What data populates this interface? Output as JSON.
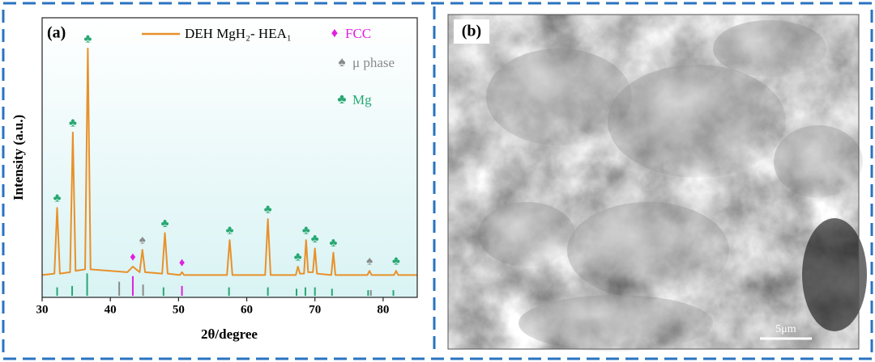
{
  "chart_data": {
    "type": "line",
    "panel_label": "(a)",
    "x_label": "2θ/degree",
    "y_label": "Intensity (a.u.)",
    "xlim": [
      30,
      85
    ],
    "xticks": [
      30,
      40,
      50,
      60,
      70,
      80
    ],
    "ylim": [
      0,
      100
    ],
    "x": [
      30,
      31.8,
      32.2,
      32.6,
      34.1,
      34.5,
      34.9,
      36.3,
      36.7,
      37.1,
      42.5,
      43.3,
      44.3,
      44.7,
      45.1,
      47.6,
      48,
      48.4,
      50.2,
      50.5,
      50.8,
      57.1,
      57.5,
      57.9,
      62.7,
      63.1,
      63.5,
      67.2,
      67.5,
      67.8,
      68.4,
      68.7,
      69.0,
      69.7,
      70.0,
      70.3,
      72.4,
      72.7,
      73.0,
      77.7,
      78.0,
      78.3,
      81.6,
      81.9,
      82.2,
      85
    ],
    "series": [
      {
        "name": "DEH MgH₂- HEA₁",
        "color": "#e8912a",
        "values": [
          8,
          8.5,
          32,
          8.5,
          9,
          59,
          9.5,
          10,
          89,
          10,
          9,
          11,
          9,
          17,
          9,
          8.5,
          23,
          8.5,
          8,
          9,
          8,
          8,
          20.5,
          8,
          8,
          28,
          8,
          8,
          11,
          8.5,
          8.5,
          20.5,
          9,
          9,
          17.5,
          8.5,
          8,
          16,
          8,
          8,
          9.5,
          8,
          8,
          9.5,
          8,
          8
        ]
      }
    ],
    "phases": [
      {
        "name": "FCC",
        "symbol": "♦",
        "color": "#e020e0",
        "peaks": [
          43.3,
          50.5
        ],
        "ref_x": [
          43.3,
          50.5
        ],
        "ref_intensity": [
          7,
          3.5
        ]
      },
      {
        "name": "μ phase",
        "symbol": "♠",
        "color": "#8a8a8a",
        "peaks": [
          44.7,
          78.0
        ],
        "ref_x": [
          41.3,
          44.8,
          78.2
        ],
        "ref_intensity": [
          5,
          4,
          2
        ]
      },
      {
        "name": "Mg",
        "symbol": "♣",
        "color": "#27a872",
        "peaks": [
          32.2,
          34.5,
          36.7,
          48,
          57.5,
          63.1,
          67.5,
          68.7,
          70.0,
          72.7,
          81.9
        ],
        "ref_x": [
          32.2,
          34.4,
          36.6,
          47.8,
          57.4,
          63.1,
          67.3,
          68.6,
          70.0,
          72.5,
          77.8,
          81.5
        ],
        "ref_intensity": [
          3,
          3.5,
          8,
          3,
          3,
          3,
          2.5,
          3,
          3,
          2.5,
          2,
          2
        ]
      }
    ]
  },
  "image_panel": {
    "panel_label": "(b)",
    "scale_bar": "5μm"
  }
}
